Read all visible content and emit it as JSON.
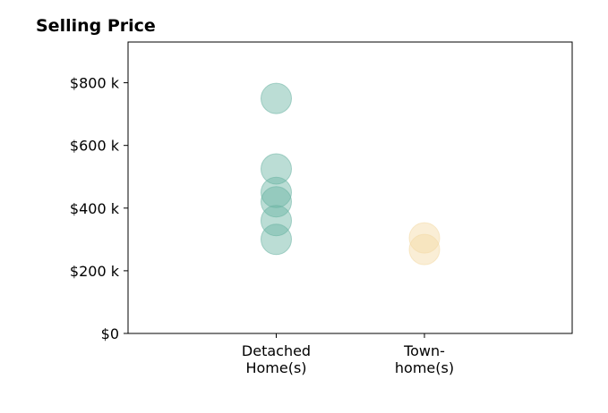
{
  "chart_data": {
    "type": "scatter",
    "title": "Selling Price",
    "xlabel": "",
    "ylabel": "",
    "categories": [
      [
        "Detached",
        "Home(s)"
      ],
      [
        "Town-",
        "home(s)"
      ]
    ],
    "ylim": [
      0,
      930000
    ],
    "yticks": [
      0,
      200000,
      400000,
      600000,
      800000
    ],
    "ytick_labels": [
      "$0",
      "$200 k",
      "$400 k",
      "$600 k",
      "$800 k"
    ],
    "grid": false,
    "legend": "none",
    "series": [
      {
        "category_index": 0,
        "color": "#69b3a2",
        "values": [
          750000,
          525000,
          450000,
          420000,
          360000,
          300000
        ]
      },
      {
        "category_index": 1,
        "color": "#f3d9a4",
        "values": [
          305000,
          268000
        ]
      }
    ]
  }
}
